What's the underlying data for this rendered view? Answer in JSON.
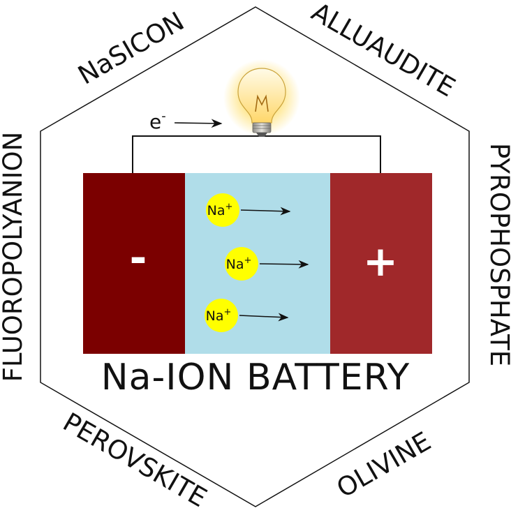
{
  "diagram": {
    "title": "Na-ION BATTERY",
    "electron_label": "e",
    "electron_superscript": "-",
    "anode_sign": "-",
    "cathode_sign": "+",
    "ions": [
      {
        "symbol": "Na",
        "charge": "+"
      },
      {
        "symbol": "Na",
        "charge": "+"
      },
      {
        "symbol": "Na",
        "charge": "+"
      }
    ],
    "framework_labels": {
      "top_left": "NaSICON",
      "top_right": "ALLUAUDITE",
      "right": "PYROPHOSPHATE",
      "bottom_right": "OLIVINE",
      "bottom_left": "PEROVSKITE",
      "left": "FLUOROPOLYANION"
    },
    "colors": {
      "anode": "#7b0000",
      "cathode": "#a0282a",
      "electrolyte": "#b0dde9",
      "ion": "#ffff00",
      "bulb_glow": "#ffe27a",
      "line": "#111111"
    },
    "icons": {
      "light_bulb": "light-bulb-icon"
    }
  }
}
